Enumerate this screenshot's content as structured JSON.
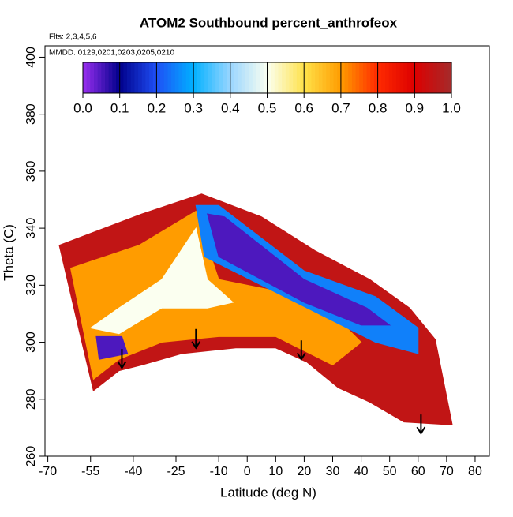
{
  "chart_data": {
    "type": "heatmap",
    "title": "ATOM2 Southbound percent_anthrofeox",
    "annotations": [
      "Flts: 2,3,4,5,6",
      "MMDD: 0129,0201,0203,0205,0210"
    ],
    "x_label": "Latitude (deg N)",
    "y_label": "Theta (C)",
    "xlim": [
      -71,
      85
    ],
    "ylim": [
      260,
      404
    ],
    "xticks": [
      -70,
      -55,
      -40,
      -25,
      -10,
      0,
      10,
      20,
      30,
      40,
      50,
      60,
      70,
      80
    ],
    "yticks": [
      260,
      280,
      300,
      320,
      340,
      360,
      380,
      400
    ],
    "colorscale": [
      [
        0,
        "#9a2ff0"
      ],
      [
        0.1,
        "#00008b"
      ],
      [
        0.2,
        "#1f4ff5"
      ],
      [
        0.3,
        "#00b0ff"
      ],
      [
        0.4,
        "#9ad6ff"
      ],
      [
        0.5,
        "#fbfff0"
      ],
      [
        0.6,
        "#ffe24a"
      ],
      [
        0.7,
        "#ff9c00"
      ],
      [
        0.8,
        "#ff2a00"
      ],
      [
        0.9,
        "#dd0000"
      ],
      [
        1,
        "#a52a2a"
      ]
    ],
    "colorbar_ticks": [
      {
        "value": 0,
        "label": "0.0"
      },
      {
        "value": 0.1,
        "label": "0.1"
      },
      {
        "value": 0.2,
        "label": "0.2"
      },
      {
        "value": 0.3,
        "label": "0.3"
      },
      {
        "value": 0.4,
        "label": "0.4"
      },
      {
        "value": 0.5,
        "label": "0.5"
      },
      {
        "value": 0.6,
        "label": "0.6"
      },
      {
        "value": 0.7,
        "label": "0.7"
      },
      {
        "value": 0.8,
        "label": "0.8"
      },
      {
        "value": 0.9,
        "label": "0.9"
      },
      {
        "value": 1,
        "label": "1.0"
      }
    ],
    "regions": [
      {
        "value": 0.95,
        "x": [
          -66,
          -37,
          -16,
          5,
          24,
          43,
          57,
          66,
          72,
          55,
          43,
          32,
          21,
          10,
          -4,
          -23,
          -37,
          -45,
          -54,
          -59
        ],
        "y": [
          334,
          345,
          352,
          344,
          332,
          322,
          312,
          301,
          271,
          272,
          279,
          284,
          293,
          298,
          298,
          296,
          292,
          290,
          283,
          304
        ]
      },
      {
        "value": 0.7,
        "x": [
          -62,
          -38,
          -18,
          -10,
          10,
          30,
          40,
          30,
          10,
          -10,
          -30,
          -45,
          -54
        ],
        "y": [
          326,
          334,
          346,
          322,
          318,
          310,
          300,
          292,
          302,
          302,
          300,
          294,
          287
        ]
      },
      {
        "value": 0.5,
        "x": [
          -55,
          -45,
          -30,
          -18,
          -14,
          -5,
          -14,
          -30,
          -45
        ],
        "y": [
          305,
          312,
          322,
          340,
          322,
          314,
          312,
          312,
          303
        ]
      },
      {
        "value": 0.25,
        "x": [
          -18,
          -10,
          20,
          45,
          60,
          60,
          45,
          25,
          -5,
          -15
        ],
        "y": [
          348,
          348,
          325,
          316,
          305,
          296,
          300,
          310,
          325,
          330
        ]
      },
      {
        "value": 0.05,
        "x": [
          -14,
          -8,
          20,
          42,
          50,
          40,
          20,
          -10
        ],
        "y": [
          345,
          344,
          322,
          312,
          306,
          306,
          314,
          330
        ]
      },
      {
        "value": 0.05,
        "x": [
          -53,
          -44,
          -42,
          -52
        ],
        "y": [
          302,
          302,
          296,
          294
        ]
      }
    ],
    "arrows": {
      "x": [
        -44,
        -18,
        19,
        61
      ],
      "y": [
        291,
        298,
        294,
        268
      ]
    }
  }
}
